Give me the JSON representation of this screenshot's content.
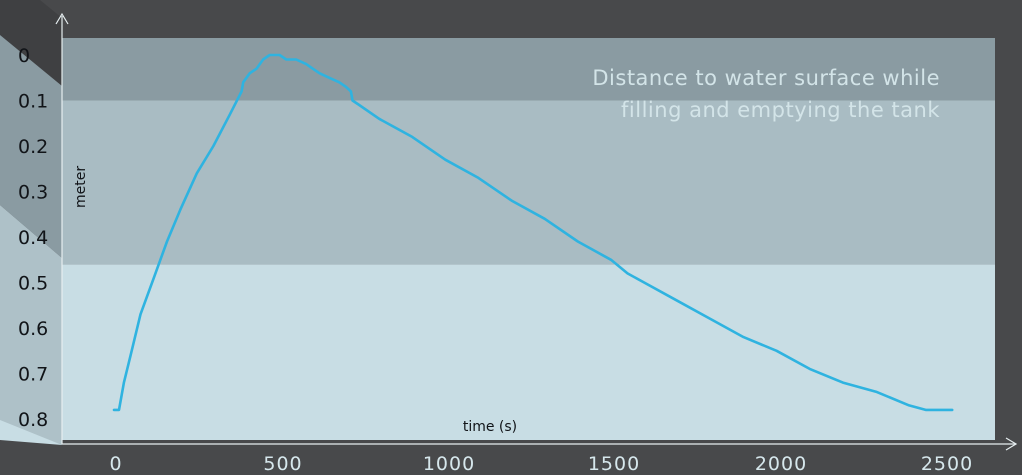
{
  "chart_data": {
    "type": "line",
    "title_lines": [
      "Distance to water surface while",
      "filling and emptying the tank"
    ],
    "xlabel": "time (s)",
    "ylabel": "meter",
    "x_ticks": [
      "0",
      "500",
      "1000",
      "1500",
      "2000",
      "2500"
    ],
    "y_ticks": [
      "0",
      "0.1",
      "0.2",
      "0.3",
      "0.4",
      "0.5",
      "0.6",
      "0.7",
      "0.8"
    ],
    "xlim": [
      0,
      2500
    ],
    "ylim": [
      0,
      0.8
    ],
    "y_inverted": true,
    "bands": [
      {
        "from": 0.0,
        "to": 0.1,
        "color": "#8a9ba2"
      },
      {
        "from": 0.1,
        "to": 0.46,
        "color": "#a9bcc3"
      },
      {
        "from": 0.46,
        "to": 0.8,
        "color": "#c8dde4"
      }
    ],
    "line_color": "#2fb3e0",
    "series": [
      {
        "x": [
          0,
          15,
          30,
          50,
          80,
          120,
          160,
          200,
          250,
          300,
          350,
          385,
          390,
          410,
          430,
          450,
          470,
          480,
          490,
          500,
          520,
          550,
          580,
          600,
          620,
          650,
          680,
          700,
          715,
          720,
          740,
          800,
          900,
          1000,
          1100,
          1200,
          1300,
          1400,
          1500,
          1550,
          1600,
          1700,
          1800,
          1900,
          2000,
          2100,
          2200,
          2300,
          2400,
          2450,
          2500,
          2530
        ],
        "y": [
          0.78,
          0.78,
          0.72,
          0.66,
          0.57,
          0.49,
          0.41,
          0.34,
          0.26,
          0.2,
          0.13,
          0.08,
          0.06,
          0.04,
          0.03,
          0.01,
          0.0,
          0.0,
          0.0,
          0.0,
          0.01,
          0.01,
          0.02,
          0.03,
          0.04,
          0.05,
          0.06,
          0.07,
          0.08,
          0.1,
          0.11,
          0.14,
          0.18,
          0.23,
          0.27,
          0.32,
          0.36,
          0.41,
          0.45,
          0.48,
          0.5,
          0.54,
          0.58,
          0.62,
          0.65,
          0.69,
          0.72,
          0.74,
          0.77,
          0.78,
          0.78,
          0.78
        ]
      }
    ]
  }
}
